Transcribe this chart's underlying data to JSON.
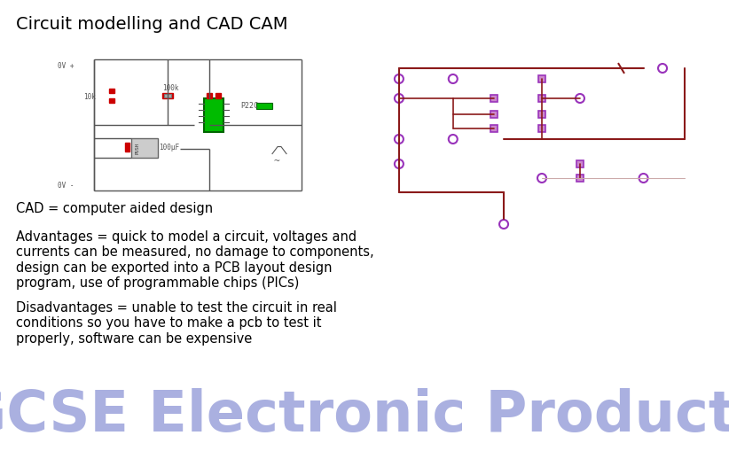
{
  "background_color": "#ffffff",
  "title": "Circuit modelling and CAD CAM",
  "title_fontsize": 14,
  "title_color": "#000000",
  "cad_line": "CAD = computer aided design",
  "advantages_lines": [
    "Advantages = quick to model a circuit, voltages and",
    "currents can be measured, no damage to components,",
    "design can be exported into a PCB layout design",
    "program, use of programmable chips (PICs)"
  ],
  "disadvantages_lines": [
    "Disadvantages = unable to test the circuit in real",
    "conditions so you have to make a pcb to test it",
    "properly, software can be expensive"
  ],
  "body_fontsize": 10.5,
  "body_color": "#000000",
  "footer_text": "GCSE Electronic Products",
  "footer_fontsize": 46,
  "footer_color": "#aab0e0",
  "dark_red": "#8B1A1A",
  "purple": "#9933BB",
  "circuit_gray": "#888888",
  "green_ic": "#00BB00",
  "dark_green_ic": "#006600",
  "red_comp": "#CC0000"
}
